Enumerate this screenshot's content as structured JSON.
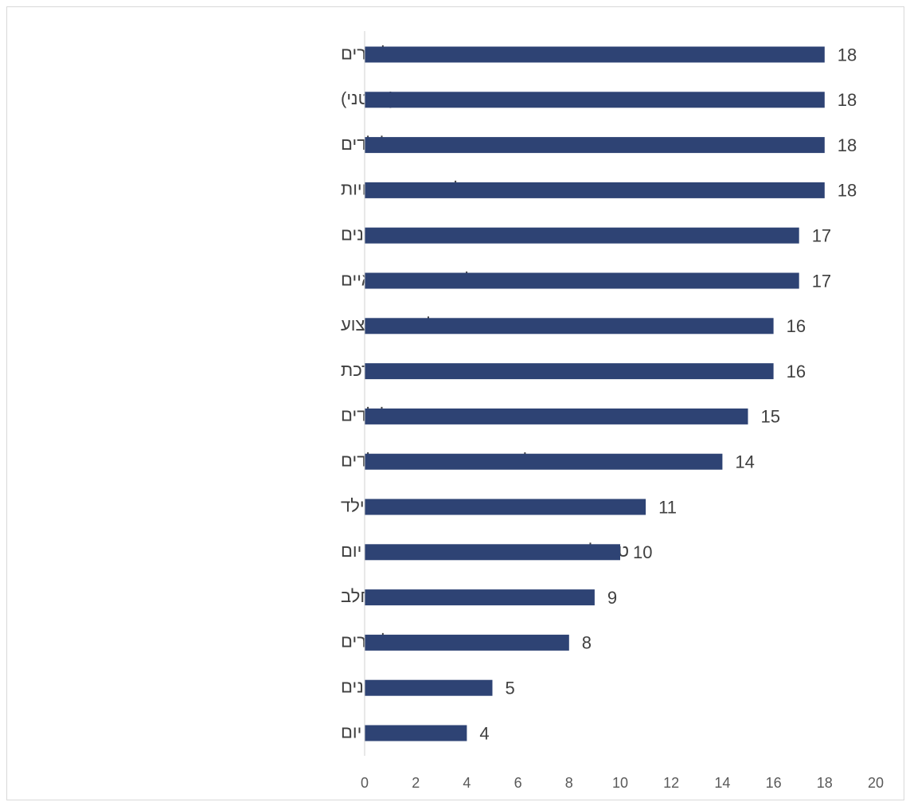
{
  "chart_data": {
    "type": "bar",
    "orientation": "horizontal",
    "title": "",
    "xlabel": "",
    "ylabel": "",
    "categories": [
      "חוגים והרצאות להורים",
      "הדרכת הורים (פרטני)",
      "חוגי העשרה לילדים",
      "קבוצות לפיתוח מיומנויות",
      "הדרכת צוותי מעונות יום וגנים",
      "טיפולים פארא-רפואיים",
      "הכשרות לאנשי מקצוע",
      "משחקייה מודרכת",
      "הצגות ואירועי העשרה לילדים",
      "סדנאות ופעילות משותפת הורים--ילדים",
      "אבחונים בהתפתחות הילד",
      "טיפולים פרטניים וקבוצתיים במעונות יום",
      "טיפת חלב",
      "מוקד ייעוץ להורים",
      "גנים",
      "מעונות יום"
    ],
    "values": [
      18,
      18,
      18,
      18,
      17,
      17,
      16,
      16,
      15,
      14,
      11,
      10,
      9,
      8,
      5,
      4
    ],
    "data_labels": [
      "18",
      "18",
      "18",
      "18",
      "17",
      "17",
      "16",
      "16",
      "15",
      "14",
      "11",
      "10",
      "9",
      "8",
      "5",
      "4"
    ],
    "xlim": [
      0,
      20
    ],
    "x_ticks": [
      "0",
      "2",
      "4",
      "6",
      "8",
      "10",
      "12",
      "14",
      "16",
      "18",
      "20"
    ],
    "grid": false,
    "legend": "none",
    "bar_color": "#2e4374"
  }
}
